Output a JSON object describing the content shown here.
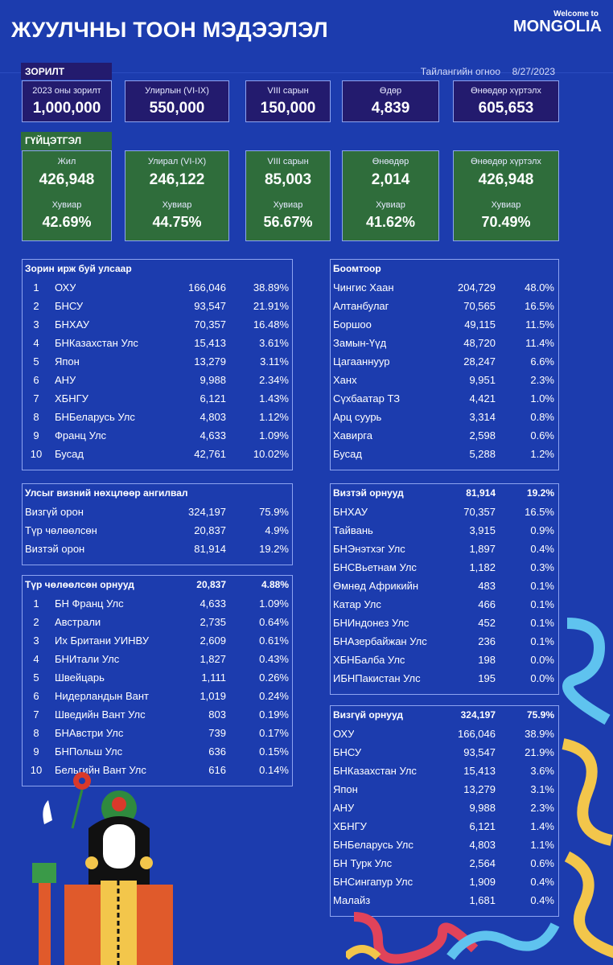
{
  "header": {
    "title": "ЖУУЛЧНЫ ТООН МЭДЭЭЛЭЛ",
    "logo_small": "Welcome to",
    "logo_big": "MONGOLIA"
  },
  "report": {
    "label": "Тайлангийн огноо",
    "date": "8/27/2023"
  },
  "target": {
    "tag": "ЗОРИЛТ",
    "items": [
      {
        "label": "2023 оны зорилт",
        "value": "1,000,000"
      },
      {
        "label": "Улирлын (VI-IX)",
        "value": "550,000"
      },
      {
        "label": "VIII сарын",
        "value": "150,000"
      },
      {
        "label": "Өдөр",
        "value": "4,839"
      },
      {
        "label": "Өнөөдөр хүртэлх",
        "value": "605,653"
      }
    ]
  },
  "performance": {
    "tag": "ГҮЙЦЭТГЭЛ",
    "items": [
      {
        "label": "Жил",
        "value": "426,948",
        "pct_label": "Хувиар",
        "pct": "42.69%"
      },
      {
        "label": "Улирал (VI-IX)",
        "value": "246,122",
        "pct_label": "Хувиар",
        "pct": "44.75%"
      },
      {
        "label": "VIII сарын",
        "value": "85,003",
        "pct_label": "Хувиар",
        "pct": "56.67%"
      },
      {
        "label": "Өнөөдөр",
        "value": "2,014",
        "pct_label": "Хувиар",
        "pct": "41.62%"
      },
      {
        "label": "Өнөөдөр хүртэлх",
        "value": "426,948",
        "pct_label": "Хувиар",
        "pct": "70.49%"
      }
    ]
  },
  "tables": {
    "by_country": {
      "title": "Зорин ирж буй улсаар",
      "value": "",
      "pct": "",
      "rows": [
        {
          "n": "1",
          "name": "ОХУ",
          "value": "166,046",
          "pct": "38.89%"
        },
        {
          "n": "2",
          "name": "БНСУ",
          "value": "93,547",
          "pct": "21.91%"
        },
        {
          "n": "3",
          "name": "БНХАУ",
          "value": "70,357",
          "pct": "16.48%"
        },
        {
          "n": "4",
          "name": "БНКазахстан Улс",
          "value": "15,413",
          "pct": "3.61%"
        },
        {
          "n": "5",
          "name": "Япон",
          "value": "13,279",
          "pct": "3.11%"
        },
        {
          "n": "6",
          "name": "АНУ",
          "value": "9,988",
          "pct": "2.34%"
        },
        {
          "n": "7",
          "name": "ХБНГУ",
          "value": "6,121",
          "pct": "1.43%"
        },
        {
          "n": "8",
          "name": "БНБеларусь Улс",
          "value": "4,803",
          "pct": "1.12%"
        },
        {
          "n": "9",
          "name": "Франц Улс",
          "value": "4,633",
          "pct": "1.09%"
        },
        {
          "n": "10",
          "name": "Бусад",
          "value": "42,761",
          "pct": "10.02%"
        }
      ]
    },
    "border": {
      "title": "Боомтоор",
      "value": "",
      "pct": "",
      "rows": [
        {
          "name": "Чингис Хаан",
          "value": "204,729",
          "pct": "48.0%"
        },
        {
          "name": "Алтанбулаг",
          "value": "70,565",
          "pct": "16.5%"
        },
        {
          "name": "Боршоо",
          "value": "49,115",
          "pct": "11.5%"
        },
        {
          "name": "Замын-Үүд",
          "value": "48,720",
          "pct": "11.4%"
        },
        {
          "name": "Цагааннуур",
          "value": "28,247",
          "pct": "6.6%"
        },
        {
          "name": "Ханх",
          "value": "9,951",
          "pct": "2.3%"
        },
        {
          "name": "Сүхбаатар ТЗ",
          "value": "4,421",
          "pct": "1.0%"
        },
        {
          "name": "Арц суурь",
          "value": "3,314",
          "pct": "0.8%"
        },
        {
          "name": "Хавирга",
          "value": "2,598",
          "pct": "0.6%"
        },
        {
          "name": "Бусад",
          "value": "5,288",
          "pct": "1.2%"
        }
      ]
    },
    "visa_class": {
      "title": "Улсыг визний нөхцлөөр ангилвал",
      "value": "",
      "pct": "",
      "rows": [
        {
          "name": "Визгүй орон",
          "value": "324,197",
          "pct": "75.9%"
        },
        {
          "name": "Түр чөлөөлсөн",
          "value": "20,837",
          "pct": "4.9%"
        },
        {
          "name": "Визтэй орон",
          "value": "81,914",
          "pct": "19.2%"
        }
      ]
    },
    "temp_exempt": {
      "title": "Түр чөлөөлсөн орнууд",
      "value": "20,837",
      "pct": "4.88%",
      "rows": [
        {
          "n": "1",
          "name": "БН Франц Улс",
          "value": "4,633",
          "pct": "1.09%"
        },
        {
          "n": "2",
          "name": "Австрали",
          "value": "2,735",
          "pct": "0.64%"
        },
        {
          "n": "3",
          "name": "Их Британи УИНВУ",
          "value": "2,609",
          "pct": "0.61%"
        },
        {
          "n": "4",
          "name": "БНИтали Улс",
          "value": "1,827",
          "pct": "0.43%"
        },
        {
          "n": "5",
          "name": "Швейцарь",
          "value": "1,111",
          "pct": "0.26%"
        },
        {
          "n": "6",
          "name": "Нидерландын Вант",
          "value": "1,019",
          "pct": "0.24%"
        },
        {
          "n": "7",
          "name": "Шведийн Вант Улс",
          "value": "803",
          "pct": "0.19%"
        },
        {
          "n": "8",
          "name": "БНАвстри Улс",
          "value": "739",
          "pct": "0.17%"
        },
        {
          "n": "9",
          "name": "БНПольш Улс",
          "value": "636",
          "pct": "0.15%"
        },
        {
          "n": "10",
          "name": "Бельгийн Вант Улс",
          "value": "616",
          "pct": "0.14%"
        }
      ]
    },
    "visa_required": {
      "title": "Визтэй орнууд",
      "value": "81,914",
      "pct": "19.2%",
      "rows": [
        {
          "name": "БНХАУ",
          "value": "70,357",
          "pct": "16.5%"
        },
        {
          "name": "Тайвань",
          "value": "3,915",
          "pct": "0.9%"
        },
        {
          "name": "БНЭнэтхэг Улс",
          "value": "1,897",
          "pct": "0.4%"
        },
        {
          "name": "БНСВьетнам Улс",
          "value": "1,182",
          "pct": "0.3%"
        },
        {
          "name": "Өмнөд Африкийн",
          "value": "483",
          "pct": "0.1%"
        },
        {
          "name": "Катар Улс",
          "value": "466",
          "pct": "0.1%"
        },
        {
          "name": "БНИндонез Улс",
          "value": "452",
          "pct": "0.1%"
        },
        {
          "name": "БНАзербайжан Улс",
          "value": "236",
          "pct": "0.1%"
        },
        {
          "name": "ХБНБалба Улс",
          "value": "198",
          "pct": "0.0%"
        },
        {
          "name": "ИБНПакистан Улс",
          "value": "195",
          "pct": "0.0%"
        }
      ]
    },
    "visa_free": {
      "title": "Визгүй орнууд",
      "value": "324,197",
      "pct": "75.9%",
      "rows": [
        {
          "name": "ОХУ",
          "value": "166,046",
          "pct": "38.9%"
        },
        {
          "name": "БНСУ",
          "value": "93,547",
          "pct": "21.9%"
        },
        {
          "name": "БНКазахстан Улс",
          "value": "15,413",
          "pct": "3.6%"
        },
        {
          "name": "Япон",
          "value": "13,279",
          "pct": "3.1%"
        },
        {
          "name": "АНУ",
          "value": "9,988",
          "pct": "2.3%"
        },
        {
          "name": "ХБНГУ",
          "value": "6,121",
          "pct": "1.4%"
        },
        {
          "name": "БНБеларусь Улс",
          "value": "4,803",
          "pct": "1.1%"
        },
        {
          "name": "БН Турк Улс",
          "value": "2,564",
          "pct": "0.6%"
        },
        {
          "name": "БНСингапур Улс",
          "value": "1,909",
          "pct": "0.4%"
        },
        {
          "name": "Малайз",
          "value": "1,681",
          "pct": "0.4%"
        }
      ]
    }
  },
  "colors": {
    "background": "#1c3cae",
    "target_box": "#231b6e",
    "performance_box": "#2f6d3b",
    "border": "#8ea4f0"
  }
}
